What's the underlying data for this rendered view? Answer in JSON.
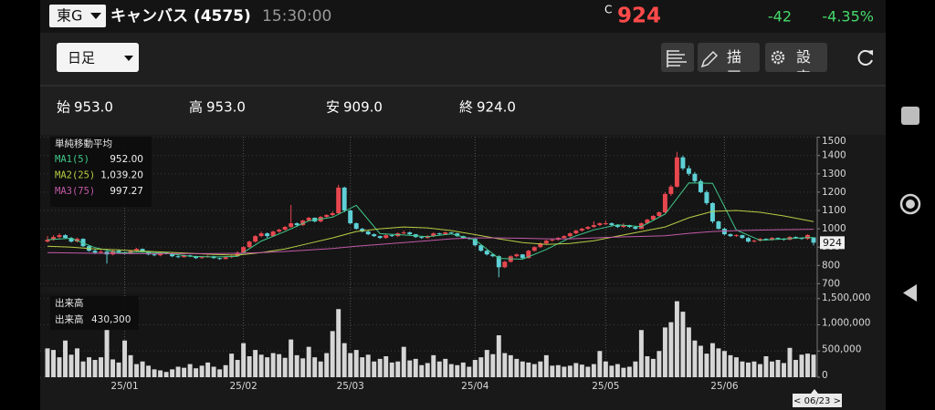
{
  "header": {
    "market": "東G",
    "name": "キャンバス (4575)",
    "time": "15:30:00",
    "close_mark": "C",
    "price": 924,
    "change": -42,
    "change_pct": "-4.35%"
  },
  "toolbar": {
    "period": "日足",
    "draw": "描画",
    "settings": "設定"
  },
  "summary": [
    {
      "label": "始",
      "value": "953.0"
    },
    {
      "label": "高",
      "value": "953.0"
    },
    {
      "label": "安",
      "value": "909.0"
    },
    {
      "label": "終",
      "value": "924.0"
    }
  ],
  "chart_data": {
    "type": "candlestick",
    "categories": [
      null,
      null,
      null,
      null,
      null,
      null,
      null,
      null,
      null,
      null,
      null,
      null,
      null,
      "25/01",
      null,
      null,
      null,
      null,
      null,
      null,
      null,
      null,
      null,
      null,
      null,
      null,
      null,
      null,
      null,
      null,
      null,
      null,
      null,
      "25/02",
      null,
      null,
      null,
      null,
      null,
      null,
      null,
      null,
      null,
      null,
      null,
      null,
      null,
      null,
      null,
      null,
      null,
      "25/03",
      null,
      null,
      null,
      null,
      null,
      null,
      null,
      null,
      null,
      null,
      null,
      null,
      null,
      null,
      null,
      null,
      null,
      null,
      null,
      null,
      "25/04",
      null,
      null,
      null,
      null,
      null,
      null,
      null,
      null,
      null,
      null,
      null,
      null,
      null,
      null,
      null,
      null,
      null,
      null,
      null,
      null,
      null,
      "25/05",
      null,
      null,
      null,
      null,
      null,
      null,
      null,
      null,
      null,
      null,
      null,
      null,
      null,
      null,
      null,
      null,
      null,
      null,
      null,
      "25/06",
      null,
      null,
      null,
      null,
      null,
      null,
      null,
      null,
      null,
      null,
      null,
      null,
      null,
      null,
      null
    ],
    "ohlc": [
      [
        930,
        960,
        925,
        940
      ],
      [
        940,
        965,
        935,
        955
      ],
      [
        955,
        975,
        948,
        965
      ],
      [
        965,
        970,
        945,
        950
      ],
      [
        950,
        955,
        925,
        930
      ],
      [
        930,
        952,
        925,
        945
      ],
      [
        945,
        948,
        900,
        905
      ],
      [
        905,
        912,
        875,
        880
      ],
      [
        880,
        890,
        862,
        870
      ],
      [
        870,
        885,
        865,
        875
      ],
      [
        875,
        880,
        810,
        860
      ],
      [
        860,
        885,
        855,
        880
      ],
      [
        880,
        888,
        865,
        870
      ],
      [
        870,
        875,
        860,
        865
      ],
      [
        865,
        885,
        860,
        880
      ],
      [
        880,
        895,
        875,
        890
      ],
      [
        890,
        892,
        870,
        875
      ],
      [
        875,
        880,
        855,
        860
      ],
      [
        860,
        865,
        850,
        855
      ],
      [
        855,
        875,
        850,
        870
      ],
      [
        870,
        872,
        860,
        865
      ],
      [
        865,
        868,
        845,
        850
      ],
      [
        850,
        855,
        840,
        845
      ],
      [
        845,
        860,
        842,
        855
      ],
      [
        855,
        858,
        845,
        850
      ],
      [
        850,
        852,
        835,
        840
      ],
      [
        840,
        850,
        836,
        845
      ],
      [
        845,
        855,
        842,
        850
      ],
      [
        850,
        852,
        836,
        840
      ],
      [
        840,
        842,
        830,
        835
      ],
      [
        835,
        850,
        832,
        845
      ],
      [
        845,
        855,
        840,
        850
      ],
      [
        850,
        878,
        848,
        870
      ],
      [
        870,
        905,
        865,
        900
      ],
      [
        900,
        935,
        895,
        930
      ],
      [
        930,
        965,
        925,
        960
      ],
      [
        960,
        985,
        955,
        975
      ],
      [
        975,
        980,
        950,
        960
      ],
      [
        960,
        990,
        955,
        985
      ],
      [
        985,
        1000,
        978,
        995
      ],
      [
        995,
        1015,
        990,
        1010
      ],
      [
        1010,
        1130,
        1005,
        1030
      ],
      [
        1030,
        1035,
        1010,
        1020
      ],
      [
        1020,
        1050,
        1015,
        1045
      ],
      [
        1045,
        1065,
        1040,
        1060
      ],
      [
        1060,
        1062,
        1035,
        1040
      ],
      [
        1040,
        1070,
        1035,
        1065
      ],
      [
        1065,
        1080,
        1055,
        1075
      ],
      [
        1075,
        1095,
        1068,
        1085
      ],
      [
        1085,
        1240,
        1080,
        1225
      ],
      [
        1225,
        1230,
        1090,
        1100
      ],
      [
        1100,
        1105,
        1025,
        1030
      ],
      [
        1030,
        1035,
        995,
        1000
      ],
      [
        1000,
        1005,
        980,
        985
      ],
      [
        985,
        990,
        965,
        970
      ],
      [
        970,
        975,
        955,
        960
      ],
      [
        960,
        962,
        945,
        950
      ],
      [
        950,
        970,
        945,
        965
      ],
      [
        965,
        968,
        955,
        960
      ],
      [
        960,
        980,
        955,
        975
      ],
      [
        975,
        990,
        970,
        980
      ],
      [
        980,
        985,
        965,
        970
      ],
      [
        970,
        972,
        950,
        955
      ],
      [
        955,
        958,
        945,
        950
      ],
      [
        950,
        965,
        946,
        960
      ],
      [
        960,
        980,
        955,
        975
      ],
      [
        975,
        978,
        965,
        970
      ],
      [
        970,
        985,
        965,
        980
      ],
      [
        980,
        982,
        970,
        975
      ],
      [
        975,
        978,
        955,
        960
      ],
      [
        960,
        962,
        945,
        950
      ],
      [
        950,
        955,
        940,
        945
      ],
      [
        945,
        948,
        905,
        910
      ],
      [
        910,
        912,
        875,
        880
      ],
      [
        880,
        885,
        855,
        860
      ],
      [
        860,
        865,
        845,
        850
      ],
      [
        850,
        855,
        735,
        790
      ],
      [
        790,
        825,
        785,
        820
      ],
      [
        820,
        855,
        815,
        850
      ],
      [
        850,
        865,
        845,
        860
      ],
      [
        860,
        862,
        835,
        840
      ],
      [
        840,
        885,
        838,
        880
      ],
      [
        880,
        905,
        875,
        900
      ],
      [
        900,
        925,
        895,
        920
      ],
      [
        920,
        940,
        915,
        935
      ],
      [
        935,
        945,
        930,
        940
      ],
      [
        940,
        955,
        935,
        950
      ],
      [
        950,
        965,
        945,
        960
      ],
      [
        960,
        980,
        955,
        975
      ],
      [
        975,
        995,
        970,
        990
      ],
      [
        990,
        1005,
        985,
        1000
      ],
      [
        1000,
        1015,
        995,
        1010
      ],
      [
        1010,
        1040,
        1005,
        1020
      ],
      [
        1020,
        1035,
        1015,
        1030
      ],
      [
        1030,
        1045,
        1020,
        1030
      ],
      [
        1030,
        1035,
        1015,
        1020
      ],
      [
        1020,
        1025,
        1005,
        1010
      ],
      [
        1010,
        1030,
        1005,
        1020
      ],
      [
        1020,
        1022,
        1005,
        1010
      ],
      [
        1010,
        1015,
        995,
        1000
      ],
      [
        1000,
        1035,
        998,
        1030
      ],
      [
        1030,
        1055,
        1025,
        1050
      ],
      [
        1050,
        1075,
        1045,
        1070
      ],
      [
        1070,
        1095,
        1065,
        1090
      ],
      [
        1090,
        1200,
        1085,
        1190
      ],
      [
        1190,
        1240,
        1180,
        1230
      ],
      [
        1230,
        1420,
        1225,
        1390
      ],
      [
        1390,
        1400,
        1320,
        1330
      ],
      [
        1330,
        1345,
        1290,
        1300
      ],
      [
        1300,
        1310,
        1250,
        1260
      ],
      [
        1260,
        1270,
        1195,
        1200
      ],
      [
        1200,
        1210,
        1130,
        1140
      ],
      [
        1140,
        1145,
        1030,
        1040
      ],
      [
        1040,
        1045,
        995,
        1000
      ],
      [
        1000,
        1005,
        965,
        970
      ],
      [
        970,
        975,
        955,
        960
      ],
      [
        960,
        970,
        955,
        965
      ],
      [
        965,
        968,
        945,
        950
      ],
      [
        950,
        955,
        925,
        930
      ],
      [
        930,
        940,
        925,
        935
      ],
      [
        935,
        950,
        930,
        945
      ],
      [
        945,
        948,
        935,
        940
      ],
      [
        940,
        955,
        935,
        950
      ],
      [
        950,
        952,
        940,
        945
      ],
      [
        945,
        948,
        935,
        940
      ],
      [
        940,
        960,
        938,
        955
      ],
      [
        955,
        958,
        945,
        950
      ],
      [
        950,
        952,
        940,
        945
      ],
      [
        945,
        970,
        940,
        966
      ],
      [
        953,
        953,
        909,
        924
      ]
    ],
    "ylim": [
      682,
      1503
    ],
    "yticks": [
      700,
      800,
      900,
      1000,
      1100,
      1200,
      1300,
      1400,
      1500
    ],
    "up_color": "#e8474f",
    "down_color": "#5ed0d6",
    "grid": true,
    "ma_title": "単純移動平均",
    "series": [
      {
        "name": "MA1(5)",
        "color": "#3fc98a",
        "legend_value": "952.00",
        "x": [
          0,
          4,
          8,
          12,
          16,
          20,
          24,
          28,
          32,
          36,
          40,
          44,
          48,
          52,
          56,
          60,
          64,
          68,
          72,
          76,
          80,
          84,
          88,
          92,
          96,
          100,
          104,
          108,
          112,
          116,
          120,
          124,
          128,
          129
        ],
        "values": [
          940,
          948,
          897,
          869,
          873,
          866,
          850,
          846,
          849,
          933,
          985,
          1043,
          1063,
          1128,
          973,
          966,
          957,
          972,
          939,
          838,
          834,
          887,
          950,
          994,
          1022,
          1012,
          1080,
          1250,
          1248,
          993,
          937,
          944,
          952,
          952
        ]
      },
      {
        "name": "MA2(25)",
        "color": "#b9cc45",
        "legend_value": "1,039.20",
        "x": [
          0,
          4,
          8,
          12,
          16,
          20,
          24,
          28,
          32,
          36,
          40,
          44,
          48,
          52,
          56,
          60,
          64,
          68,
          72,
          76,
          80,
          84,
          88,
          92,
          96,
          100,
          104,
          108,
          112,
          116,
          120,
          124,
          128,
          129
        ],
        "values": [
          905,
          900,
          890,
          885,
          878,
          872,
          866,
          860,
          856,
          870,
          890,
          920,
          950,
          985,
          1000,
          1010,
          1005,
          990,
          968,
          945,
          925,
          915,
          920,
          935,
          960,
          985,
          1010,
          1060,
          1095,
          1100,
          1090,
          1070,
          1045,
          1039.2
        ]
      },
      {
        "name": "MA3(75)",
        "color": "#c259a8",
        "legend_value": "997.27",
        "x": [
          0,
          4,
          8,
          12,
          16,
          20,
          24,
          28,
          32,
          36,
          40,
          44,
          48,
          52,
          56,
          60,
          64,
          68,
          72,
          76,
          80,
          84,
          88,
          92,
          96,
          100,
          104,
          108,
          112,
          116,
          120,
          124,
          128,
          129
        ],
        "values": [
          870,
          868,
          866,
          865,
          864,
          864,
          864,
          865,
          866,
          870,
          876,
          884,
          892,
          905,
          915,
          925,
          935,
          945,
          950,
          950,
          948,
          945,
          945,
          950,
          955,
          958,
          962,
          975,
          985,
          990,
          993,
          995,
          997,
          997.27
        ]
      }
    ],
    "cursor_date": "< 06/23 >",
    "volume": {
      "title": "出来高",
      "name": "出来高",
      "value_label": "430,300",
      "color": "#d6d6d6",
      "ylim": [
        0,
        1600000
      ],
      "yticks": [
        0,
        {
          "value": 500000,
          "label": "500,000"
        },
        {
          "value": 1000000,
          "label": "1,000,000"
        },
        {
          "value": 1500000,
          "label": "1,500,000"
        }
      ],
      "values": [
        550000,
        520000,
        380000,
        700000,
        430000,
        550000,
        300000,
        380000,
        330000,
        380000,
        900000,
        340000,
        280000,
        700000,
        420000,
        250000,
        300000,
        220000,
        150000,
        130000,
        100000,
        150000,
        200000,
        180000,
        250000,
        170000,
        220000,
        280000,
        200000,
        150000,
        230000,
        450000,
        330000,
        650000,
        400000,
        520000,
        430000,
        380000,
        460000,
        440000,
        370000,
        720000,
        420000,
        360000,
        580000,
        380000,
        300000,
        460000,
        880000,
        1300000,
        650000,
        460000,
        520000,
        380000,
        430000,
        300000,
        350000,
        400000,
        280000,
        300000,
        580000,
        320000,
        350000,
        230000,
        270000,
        420000,
        300000,
        350000,
        250000,
        230000,
        280000,
        200000,
        330000,
        380000,
        520000,
        440000,
        800000,
        460000,
        420000,
        350000,
        300000,
        280000,
        250000,
        300000,
        420000,
        220000,
        230000,
        200000,
        220000,
        270000,
        240000,
        200000,
        250000,
        500000,
        300000,
        220000,
        250000,
        180000,
        200000,
        300000,
        900000,
        400000,
        350000,
        500000,
        950000,
        1050000,
        1450000,
        1250000,
        950000,
        700000,
        600000,
        450000,
        650000,
        550000,
        500000,
        420000,
        380000,
        300000,
        280000,
        300000,
        250000,
        400000,
        300000,
        330000,
        270000,
        560000,
        330000,
        430000,
        450000,
        430300
      ]
    }
  }
}
